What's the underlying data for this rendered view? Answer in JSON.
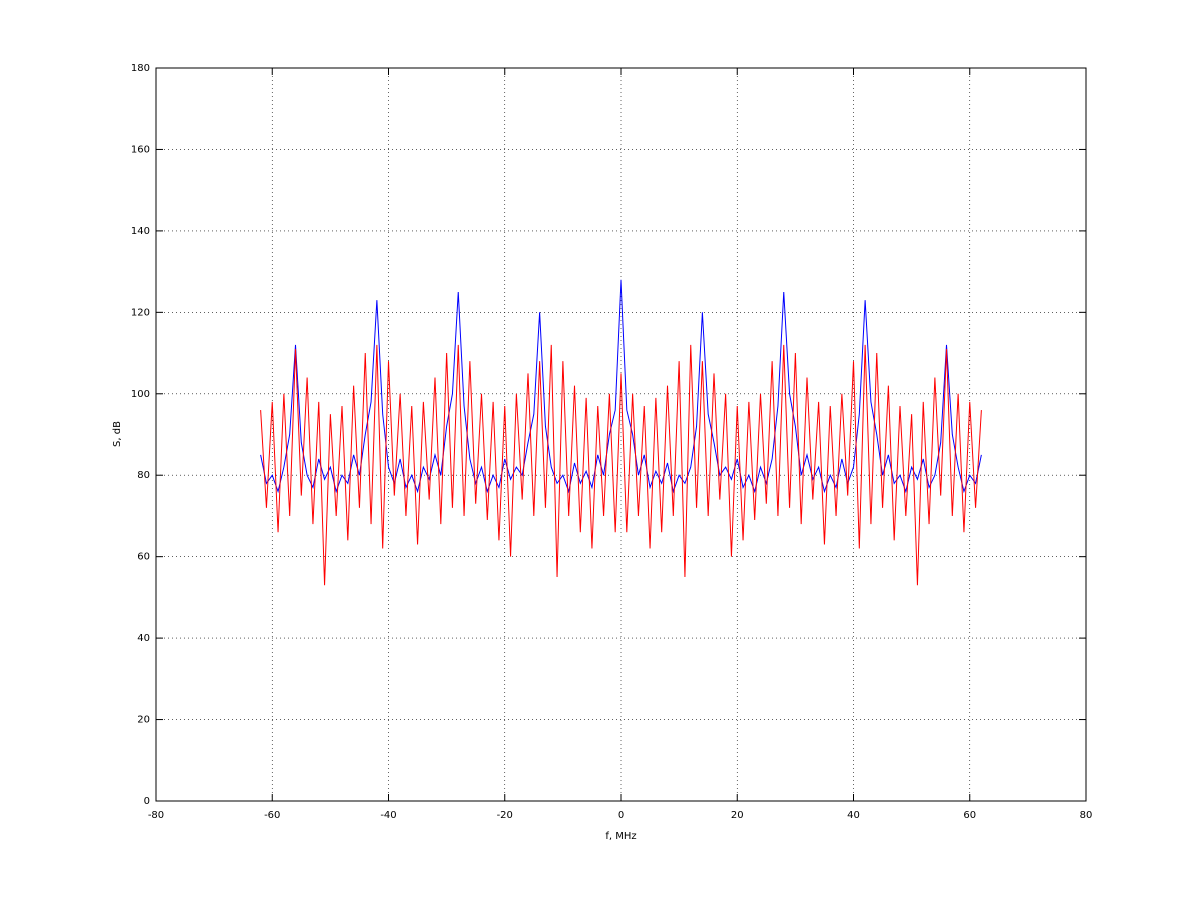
{
  "chart_data": {
    "type": "line",
    "xlabel": "f, MHz",
    "ylabel": "S, dB",
    "xlim": [
      -80,
      80
    ],
    "ylim": [
      0,
      180
    ],
    "xticks": [
      -80,
      -60,
      -40,
      -20,
      0,
      20,
      40,
      60,
      80
    ],
    "yticks": [
      0,
      20,
      40,
      60,
      80,
      100,
      120,
      140,
      160,
      180
    ],
    "grid": true,
    "x": [
      -62,
      -61,
      -60,
      -59,
      -58,
      -57,
      -56,
      -55,
      -54,
      -53,
      -52,
      -51,
      -50,
      -49,
      -48,
      -47,
      -46,
      -45,
      -44,
      -43,
      -42,
      -41,
      -40,
      -39,
      -38,
      -37,
      -36,
      -35,
      -34,
      -33,
      -32,
      -31,
      -30,
      -29,
      -28,
      -27,
      -26,
      -25,
      -24,
      -23,
      -22,
      -21,
      -20,
      -19,
      -18,
      -17,
      -16,
      -15,
      -14,
      -13,
      -12,
      -11,
      -10,
      -9,
      -8,
      -7,
      -6,
      -5,
      -4,
      -3,
      -2,
      -1,
      0,
      1,
      2,
      3,
      4,
      5,
      6,
      7,
      8,
      9,
      10,
      11,
      12,
      13,
      14,
      15,
      16,
      17,
      18,
      19,
      20,
      21,
      22,
      23,
      24,
      25,
      26,
      27,
      28,
      29,
      30,
      31,
      32,
      33,
      34,
      35,
      36,
      37,
      38,
      39,
      40,
      41,
      42,
      43,
      44,
      45,
      46,
      47,
      48,
      49,
      50,
      51,
      52,
      53,
      54,
      55,
      56,
      57,
      58,
      59,
      60,
      61,
      62
    ],
    "series": [
      {
        "color": "#0000ff",
        "values": [
          85,
          78,
          80,
          76,
          82,
          90,
          112,
          88,
          80,
          77,
          84,
          79,
          82,
          76,
          80,
          78,
          85,
          80,
          90,
          98,
          123,
          95,
          82,
          78,
          84,
          77,
          80,
          76,
          82,
          79,
          85,
          80,
          92,
          100,
          125,
          97,
          84,
          78,
          82,
          76,
          80,
          77,
          84,
          79,
          82,
          80,
          88,
          95,
          120,
          92,
          82,
          78,
          80,
          76,
          83,
          78,
          81,
          77,
          85,
          80,
          90,
          96,
          128,
          96,
          90,
          80,
          85,
          77,
          81,
          78,
          83,
          76,
          80,
          78,
          82,
          92,
          120,
          95,
          88,
          80,
          82,
          79,
          84,
          77,
          80,
          76,
          82,
          78,
          84,
          97,
          125,
          100,
          92,
          80,
          85,
          79,
          82,
          76,
          80,
          77,
          84,
          78,
          82,
          95,
          123,
          98,
          90,
          80,
          85,
          78,
          80,
          76,
          82,
          79,
          84,
          77,
          80,
          88,
          112,
          90,
          82,
          76,
          80,
          78,
          85
        ]
      },
      {
        "color": "#ff0000",
        "values": [
          96,
          72,
          98,
          66,
          100,
          70,
          111,
          75,
          104,
          68,
          98,
          53,
          95,
          70,
          97,
          64,
          102,
          72,
          110,
          68,
          112,
          62,
          108,
          75,
          100,
          70,
          97,
          63,
          98,
          74,
          104,
          68,
          110,
          72,
          112,
          70,
          108,
          73,
          100,
          69,
          98,
          64,
          97,
          60,
          100,
          74,
          105,
          70,
          108,
          72,
          112,
          55,
          108,
          70,
          102,
          66,
          99,
          62,
          97,
          70,
          100,
          66,
          105,
          66,
          100,
          70,
          97,
          62,
          99,
          66,
          102,
          70,
          108,
          55,
          112,
          72,
          108,
          70,
          105,
          74,
          100,
          60,
          97,
          64,
          98,
          69,
          100,
          73,
          108,
          70,
          112,
          72,
          110,
          68,
          104,
          74,
          98,
          63,
          97,
          70,
          100,
          75,
          108,
          62,
          112,
          68,
          110,
          72,
          102,
          64,
          97,
          70,
          95,
          53,
          98,
          68,
          104,
          75,
          111,
          70,
          100,
          66,
          98,
          72,
          96
        ]
      }
    ]
  }
}
